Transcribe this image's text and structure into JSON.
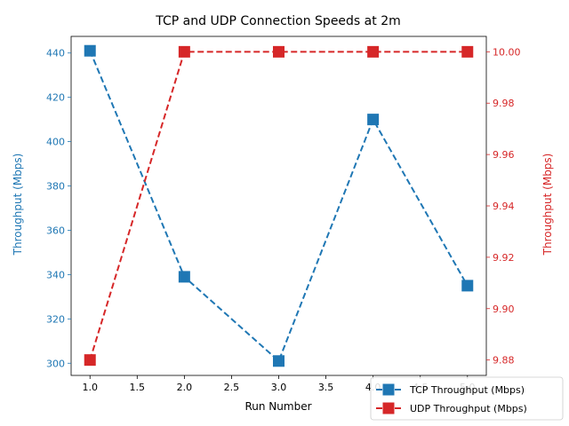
{
  "chart_data": {
    "type": "line",
    "title": "TCP and UDP Connection Speeds at 2m",
    "xlabel": "Run Number",
    "ylabel_left": "Throughput (Mbps)",
    "ylabel_right": "Throughput (Mbps)",
    "x": [
      1,
      2,
      3,
      4,
      5
    ],
    "xlim": [
      0.8,
      5.2
    ],
    "xticks": [
      1.0,
      1.5,
      2.0,
      2.5,
      3.0,
      3.5,
      4.0,
      4.5,
      5.0
    ],
    "xtick_labels": [
      "1.0",
      "1.5",
      "2.0",
      "2.5",
      "3.0",
      "3.5",
      "4.0",
      "4.5",
      "5.0"
    ],
    "ylim_left": [
      294.5,
      447.5
    ],
    "yticks_left": [
      300,
      320,
      340,
      360,
      380,
      400,
      420,
      440
    ],
    "ytick_labels_left": [
      "300",
      "320",
      "340",
      "360",
      "380",
      "400",
      "420",
      "440"
    ],
    "ylim_right": [
      9.874,
      10.006
    ],
    "yticks_right": [
      9.88,
      9.9,
      9.92,
      9.94,
      9.96,
      9.98,
      10.0
    ],
    "ytick_labels_right": [
      "9.88",
      "9.90",
      "9.92",
      "9.94",
      "9.96",
      "9.98",
      "10.00"
    ],
    "grid": false,
    "legend_position": "lower-right",
    "series": [
      {
        "name": "TCP Throughput (Mbps)",
        "axis": "left",
        "color": "#1f77b4",
        "line_style": "dashed",
        "marker": "square",
        "values": [
          441,
          339,
          301,
          410,
          335
        ]
      },
      {
        "name": "UDP Throughput (Mbps)",
        "axis": "right",
        "color": "#d62728",
        "line_style": "dashed",
        "marker": "square",
        "values": [
          9.88,
          10.0,
          10.0,
          10.0,
          10.0
        ]
      }
    ]
  }
}
